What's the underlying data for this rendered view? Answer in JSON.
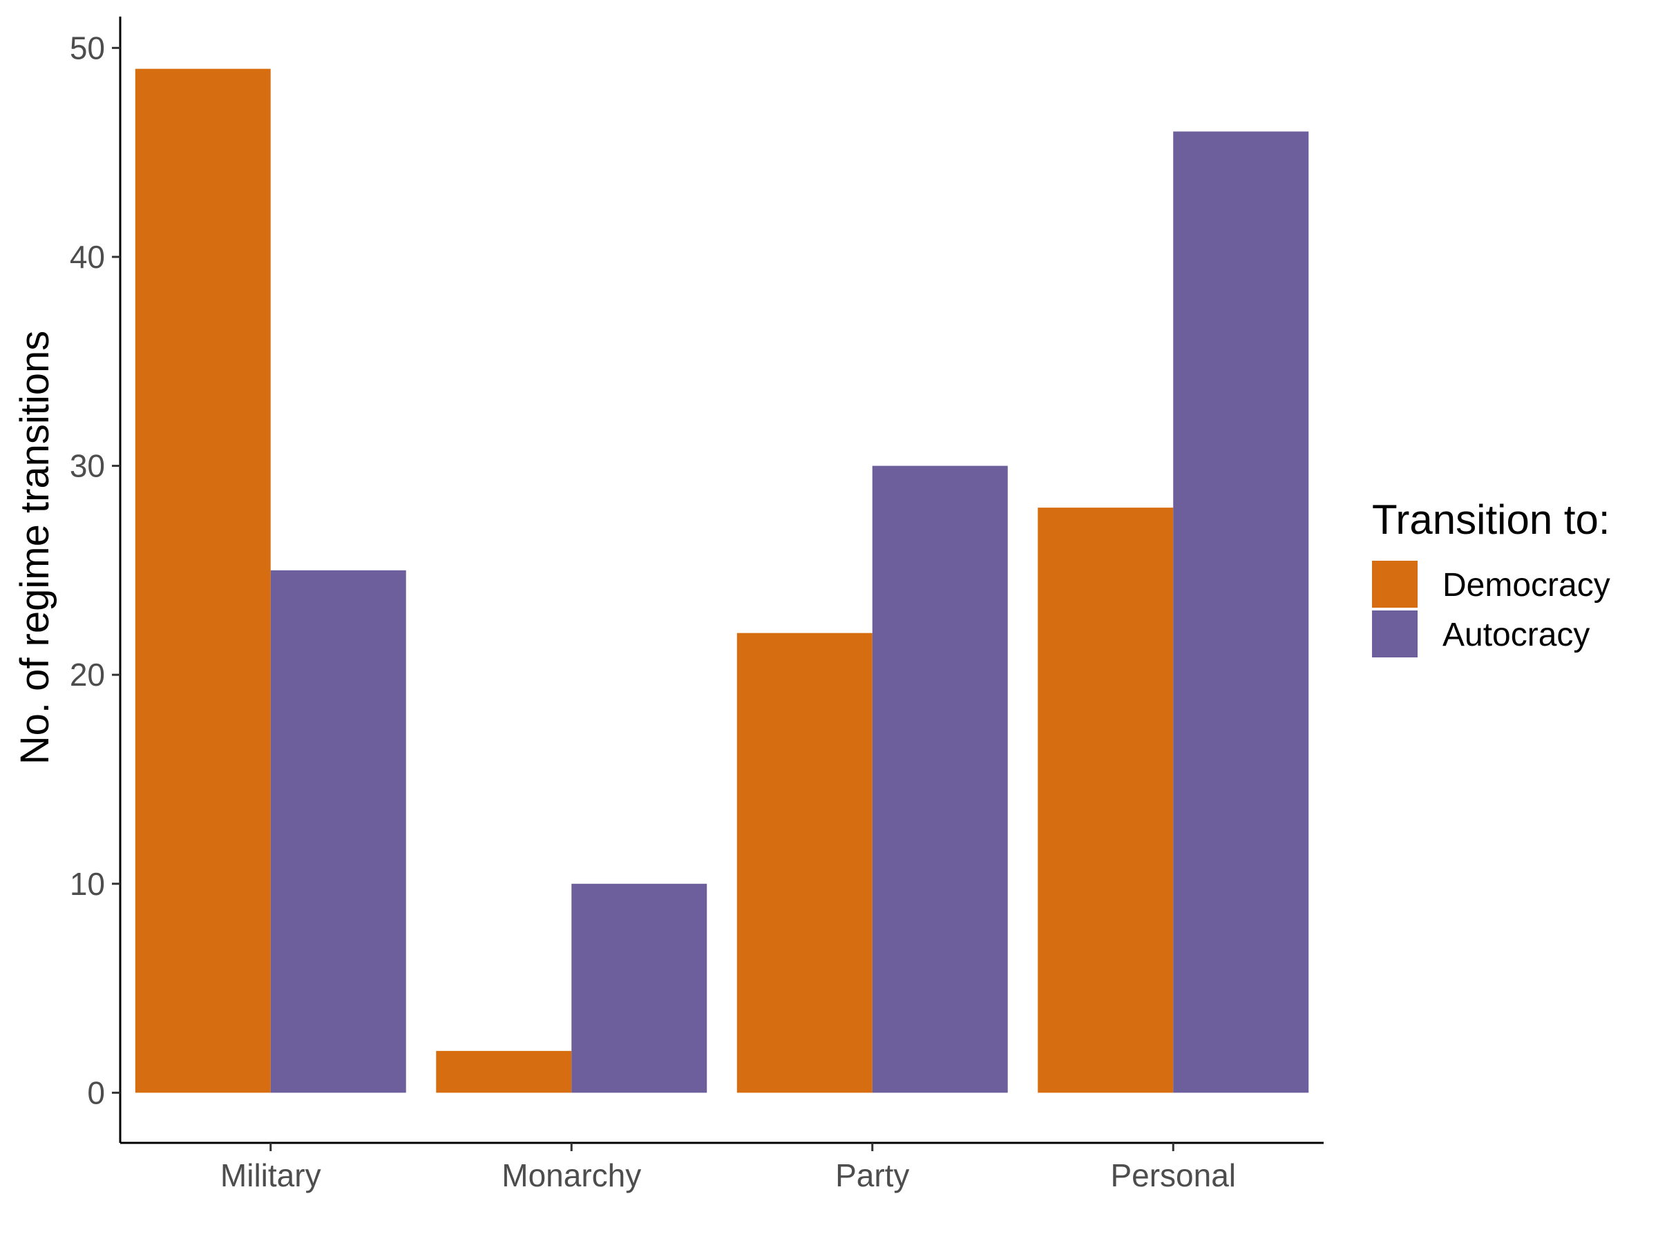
{
  "chart_data": {
    "type": "bar",
    "categories": [
      "Military",
      "Monarchy",
      "Party",
      "Personal"
    ],
    "series": [
      {
        "name": "Democracy",
        "values": [
          49,
          2,
          22,
          28
        ],
        "color": "#D66E11"
      },
      {
        "name": "Autocracy",
        "values": [
          25,
          10,
          30,
          46
        ],
        "color": "#6C5F9C"
      }
    ],
    "xlabel": "",
    "ylabel": "No. of regime transitions",
    "ylim": [
      -2.4,
      51.5
    ],
    "yticks": [
      0,
      10,
      20,
      30,
      40,
      50
    ],
    "grid": false,
    "legend": {
      "title": "Transition to:",
      "placement": "right"
    }
  }
}
